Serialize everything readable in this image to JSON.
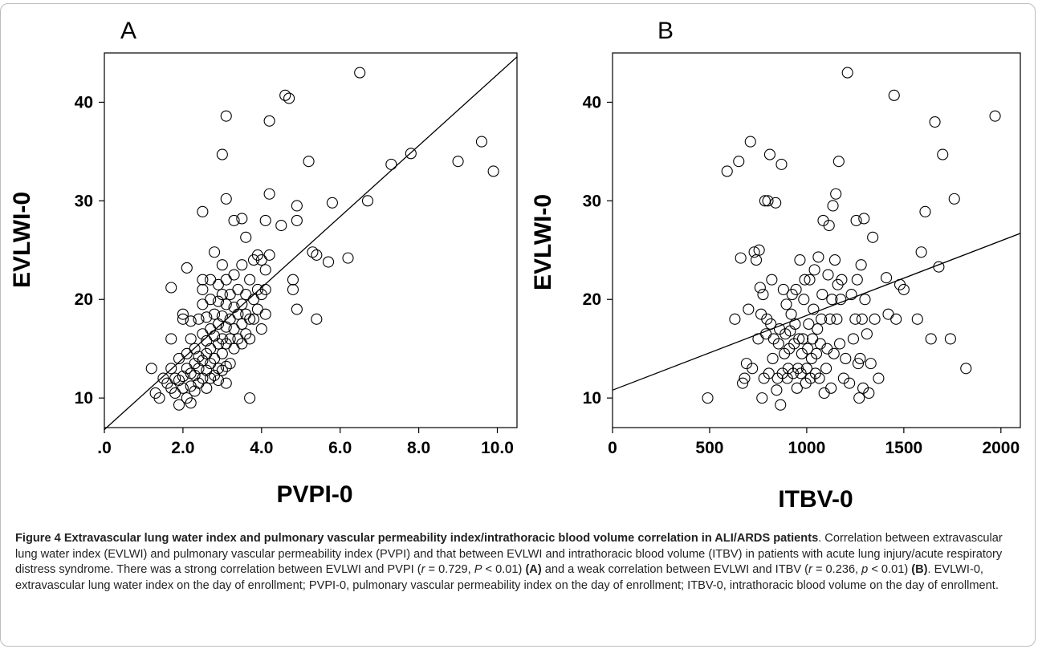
{
  "chart_data": [
    {
      "type": "scatter",
      "panel": "A",
      "xlabel": "PVPI-0",
      "ylabel": "EVLWI-0",
      "xlim": [
        0,
        10.5
      ],
      "ylim": [
        7,
        45
      ],
      "xticks": [
        0,
        2,
        4,
        6,
        8,
        10
      ],
      "xtick_labels": [
        ".0",
        "2.0",
        "4.0",
        "6.0",
        "8.0",
        "10.0"
      ],
      "yticks": [
        10,
        20,
        30,
        40
      ],
      "ytick_labels": [
        "10",
        "20",
        "30",
        "40"
      ],
      "grid": false,
      "fit_line": {
        "x": [
          0,
          10.5
        ],
        "y": [
          6.8,
          44.6
        ]
      },
      "points": [
        [
          1.2,
          13
        ],
        [
          1.3,
          10.5
        ],
        [
          1.4,
          10
        ],
        [
          1.5,
          12
        ],
        [
          1.6,
          11.5
        ],
        [
          1.7,
          11
        ],
        [
          1.7,
          13
        ],
        [
          1.7,
          16
        ],
        [
          1.7,
          21.2
        ],
        [
          1.8,
          10.5
        ],
        [
          1.8,
          12
        ],
        [
          1.9,
          9.3
        ],
        [
          1.9,
          11.8
        ],
        [
          1.9,
          14
        ],
        [
          2.0,
          18.5
        ],
        [
          2.0,
          18
        ],
        [
          2.0,
          12.2
        ],
        [
          2.0,
          11
        ],
        [
          2.1,
          23.2
        ],
        [
          2.1,
          10
        ],
        [
          2.1,
          13
        ],
        [
          2.1,
          14.5
        ],
        [
          2.2,
          9.5
        ],
        [
          2.2,
          11.2
        ],
        [
          2.2,
          12.5
        ],
        [
          2.2,
          16
        ],
        [
          2.2,
          17.8
        ],
        [
          2.3,
          10.7
        ],
        [
          2.3,
          12.3
        ],
        [
          2.3,
          13.5
        ],
        [
          2.3,
          15
        ],
        [
          2.4,
          11.5
        ],
        [
          2.4,
          13
        ],
        [
          2.4,
          14.2
        ],
        [
          2.4,
          18
        ],
        [
          2.5,
          12
        ],
        [
          2.5,
          13.8
        ],
        [
          2.5,
          16.5
        ],
        [
          2.5,
          19.5
        ],
        [
          2.5,
          21
        ],
        [
          2.5,
          22
        ],
        [
          2.5,
          28.9
        ],
        [
          2.6,
          11
        ],
        [
          2.6,
          12.8
        ],
        [
          2.6,
          14.5
        ],
        [
          2.6,
          15.8
        ],
        [
          2.6,
          18.2
        ],
        [
          2.7,
          12
        ],
        [
          2.7,
          13.5
        ],
        [
          2.7,
          15
        ],
        [
          2.7,
          17
        ],
        [
          2.7,
          20
        ],
        [
          2.7,
          22
        ],
        [
          2.8,
          12.3
        ],
        [
          2.8,
          14
        ],
        [
          2.8,
          16.3
        ],
        [
          2.8,
          18.5
        ],
        [
          2.8,
          24.8
        ],
        [
          2.9,
          11.8
        ],
        [
          2.9,
          13
        ],
        [
          2.9,
          15.5
        ],
        [
          2.9,
          17.5
        ],
        [
          2.9,
          19.8
        ],
        [
          2.9,
          21.5
        ],
        [
          3.0,
          12.8
        ],
        [
          3.0,
          14.5
        ],
        [
          3.0,
          16
        ],
        [
          3.0,
          18.3
        ],
        [
          3.0,
          20.5
        ],
        [
          3.0,
          23.5
        ],
        [
          3.0,
          34.7
        ],
        [
          3.1,
          11.5
        ],
        [
          3.1,
          13.2
        ],
        [
          3.1,
          15.5
        ],
        [
          3.1,
          17.2
        ],
        [
          3.1,
          19.5
        ],
        [
          3.1,
          22
        ],
        [
          3.1,
          30.2
        ],
        [
          3.1,
          38.6
        ],
        [
          3.2,
          13.5
        ],
        [
          3.2,
          16
        ],
        [
          3.2,
          18
        ],
        [
          3.2,
          20.5
        ],
        [
          3.3,
          15
        ],
        [
          3.3,
          17
        ],
        [
          3.3,
          19.2
        ],
        [
          3.3,
          22.5
        ],
        [
          3.3,
          28
        ],
        [
          3.4,
          16
        ],
        [
          3.4,
          18.5
        ],
        [
          3.4,
          21
        ],
        [
          3.5,
          15.5
        ],
        [
          3.5,
          17.5
        ],
        [
          3.5,
          19.5
        ],
        [
          3.5,
          23.5
        ],
        [
          3.5,
          28.2
        ],
        [
          3.6,
          16.5
        ],
        [
          3.6,
          18.5
        ],
        [
          3.6,
          20.5
        ],
        [
          3.6,
          26.3
        ],
        [
          3.7,
          10
        ],
        [
          3.7,
          16
        ],
        [
          3.7,
          18
        ],
        [
          3.7,
          22
        ],
        [
          3.8,
          18
        ],
        [
          3.8,
          20
        ],
        [
          3.8,
          24
        ],
        [
          3.9,
          19
        ],
        [
          3.9,
          21
        ],
        [
          3.9,
          24.5
        ],
        [
          4.0,
          17
        ],
        [
          4.0,
          20.5
        ],
        [
          4.0,
          24
        ],
        [
          4.1,
          18.5
        ],
        [
          4.1,
          21
        ],
        [
          4.1,
          23
        ],
        [
          4.1,
          28
        ],
        [
          4.2,
          24.5
        ],
        [
          4.2,
          30.7
        ],
        [
          4.2,
          38.1
        ],
        [
          4.5,
          27.5
        ],
        [
          4.6,
          40.7
        ],
        [
          4.7,
          40.4
        ],
        [
          4.8,
          22
        ],
        [
          4.8,
          21
        ],
        [
          4.9,
          19
        ],
        [
          4.9,
          28
        ],
        [
          4.9,
          29.5
        ],
        [
          5.2,
          34
        ],
        [
          5.3,
          24.8
        ],
        [
          5.4,
          24.5
        ],
        [
          5.4,
          18
        ],
        [
          5.7,
          23.8
        ],
        [
          5.8,
          29.8
        ],
        [
          6.2,
          24.2
        ],
        [
          6.5,
          43
        ],
        [
          6.7,
          30
        ],
        [
          7.3,
          33.7
        ],
        [
          7.8,
          34.8
        ],
        [
          9.0,
          34
        ],
        [
          9.6,
          36
        ],
        [
          9.9,
          33
        ]
      ]
    },
    {
      "type": "scatter",
      "panel": "B",
      "xlabel": "ITBV-0",
      "ylabel": "EVLWI-0",
      "xlim": [
        0,
        2100
      ],
      "ylim": [
        7,
        45
      ],
      "xticks": [
        0,
        500,
        1000,
        1500,
        2000
      ],
      "xtick_labels": [
        "0",
        "500",
        "1000",
        "1500",
        "2000"
      ],
      "yticks": [
        10,
        20,
        30,
        40
      ],
      "ytick_labels": [
        "10",
        "20",
        "30",
        "40"
      ],
      "grid": false,
      "fit_line": {
        "x": [
          0,
          2100
        ],
        "y": [
          10.8,
          26.7
        ]
      },
      "points": [
        [
          490,
          10
        ],
        [
          590,
          33
        ],
        [
          630,
          18
        ],
        [
          650,
          34
        ],
        [
          660,
          24.2
        ],
        [
          670,
          11.5
        ],
        [
          680,
          12
        ],
        [
          690,
          13.5
        ],
        [
          700,
          19
        ],
        [
          710,
          36
        ],
        [
          720,
          13
        ],
        [
          730,
          24.8
        ],
        [
          740,
          24
        ],
        [
          750,
          16
        ],
        [
          755,
          25
        ],
        [
          760,
          21.2
        ],
        [
          765,
          18.5
        ],
        [
          770,
          10
        ],
        [
          775,
          20.5
        ],
        [
          780,
          12
        ],
        [
          785,
          30
        ],
        [
          790,
          16.5
        ],
        [
          795,
          18
        ],
        [
          800,
          30
        ],
        [
          805,
          12.5
        ],
        [
          810,
          34.7
        ],
        [
          815,
          17.5
        ],
        [
          820,
          22
        ],
        [
          825,
          14
        ],
        [
          830,
          16
        ],
        [
          840,
          29.8
        ],
        [
          845,
          10.8
        ],
        [
          850,
          12
        ],
        [
          855,
          15.5
        ],
        [
          860,
          17
        ],
        [
          865,
          9.3
        ],
        [
          870,
          33.7
        ],
        [
          875,
          12.5
        ],
        [
          880,
          21
        ],
        [
          885,
          14.5
        ],
        [
          890,
          16.5
        ],
        [
          895,
          19.5
        ],
        [
          900,
          12
        ],
        [
          905,
          13
        ],
        [
          910,
          15
        ],
        [
          915,
          16.8
        ],
        [
          920,
          18.5
        ],
        [
          925,
          20.5
        ],
        [
          930,
          12.5
        ],
        [
          935,
          15.5
        ],
        [
          940,
          17.5
        ],
        [
          945,
          21
        ],
        [
          950,
          11
        ],
        [
          955,
          13
        ],
        [
          960,
          16
        ],
        [
          965,
          24
        ],
        [
          970,
          12.5
        ],
        [
          975,
          14.5
        ],
        [
          980,
          16
        ],
        [
          985,
          20
        ],
        [
          990,
          22
        ],
        [
          995,
          11.5
        ],
        [
          1000,
          13
        ],
        [
          1005,
          15
        ],
        [
          1010,
          17.5
        ],
        [
          1015,
          22
        ],
        [
          1020,
          12
        ],
        [
          1025,
          14
        ],
        [
          1030,
          16
        ],
        [
          1035,
          19
        ],
        [
          1040,
          23
        ],
        [
          1045,
          12.5
        ],
        [
          1050,
          14.5
        ],
        [
          1055,
          17
        ],
        [
          1060,
          24.3
        ],
        [
          1065,
          12
        ],
        [
          1070,
          15.5
        ],
        [
          1075,
          18
        ],
        [
          1080,
          20.5
        ],
        [
          1085,
          28
        ],
        [
          1090,
          10.5
        ],
        [
          1100,
          13
        ],
        [
          1105,
          15
        ],
        [
          1110,
          22.5
        ],
        [
          1115,
          27.5
        ],
        [
          1120,
          18
        ],
        [
          1125,
          11
        ],
        [
          1130,
          20
        ],
        [
          1135,
          29.5
        ],
        [
          1140,
          14.5
        ],
        [
          1145,
          24
        ],
        [
          1150,
          30.7
        ],
        [
          1155,
          18
        ],
        [
          1160,
          21.5
        ],
        [
          1165,
          34
        ],
        [
          1170,
          15.5
        ],
        [
          1175,
          20
        ],
        [
          1180,
          22
        ],
        [
          1190,
          12
        ],
        [
          1200,
          14
        ],
        [
          1210,
          43
        ],
        [
          1220,
          11.5
        ],
        [
          1230,
          20.5
        ],
        [
          1240,
          16
        ],
        [
          1250,
          18
        ],
        [
          1255,
          28
        ],
        [
          1260,
          22
        ],
        [
          1265,
          13.5
        ],
        [
          1270,
          10
        ],
        [
          1275,
          14
        ],
        [
          1280,
          23.5
        ],
        [
          1285,
          18
        ],
        [
          1290,
          11
        ],
        [
          1295,
          28.2
        ],
        [
          1300,
          20
        ],
        [
          1310,
          16.5
        ],
        [
          1320,
          10.5
        ],
        [
          1330,
          13.5
        ],
        [
          1340,
          26.3
        ],
        [
          1350,
          18
        ],
        [
          1370,
          12
        ],
        [
          1410,
          22.2
        ],
        [
          1420,
          18.5
        ],
        [
          1450,
          40.7
        ],
        [
          1460,
          18
        ],
        [
          1480,
          21.5
        ],
        [
          1500,
          21
        ],
        [
          1570,
          18
        ],
        [
          1590,
          24.8
        ],
        [
          1610,
          28.9
        ],
        [
          1640,
          16
        ],
        [
          1660,
          38
        ],
        [
          1680,
          23.3
        ],
        [
          1700,
          34.7
        ],
        [
          1740,
          16
        ],
        [
          1760,
          30.2
        ],
        [
          1820,
          13
        ],
        [
          1970,
          38.6
        ]
      ]
    }
  ],
  "panels": {
    "a_label": "A",
    "b_label": "B"
  },
  "axes": {
    "a_xlabel": "PVPI-0",
    "a_ylabel": "EVLWI-0",
    "b_xlabel": "ITBV-0",
    "b_ylabel": "EVLWI-0"
  },
  "caption": {
    "head": "Figure 4 Extravascular lung water index and pulmonary vascular permeability index/intrathoracic blood volume correlation in ALI/ARDS patients",
    "p1": ". Correlation between extravascular lung water index (EVLWI) and pulmonary vascular permeability index (PVPI) and that between EVLWI and intrathoracic blood volume (ITBV) in patients with acute lung injury/acute respiratory distress syndrome. There was a strong correlation between EVLWI and PVPI (",
    "r_sym": "r",
    "p2": " = 0.729, ",
    "P_sym": "P",
    "p3": " < 0.01) ",
    "tagA": "(A)",
    "p4": " and a weak correlation between EVLWI and ITBV (",
    "r_sym2": "r",
    "p5": " = 0.236, ",
    "p_sym2": "p",
    "p6": " < 0.01) ",
    "tagB": "(B)",
    "p7": ". EVLWI-0, extravascular lung water index on the day of enrollment; PVPI-0, pulmonary vascular permeability index on the day of enrollment; ITBV-0, intrathoracic blood volume on the day of enrollment."
  }
}
